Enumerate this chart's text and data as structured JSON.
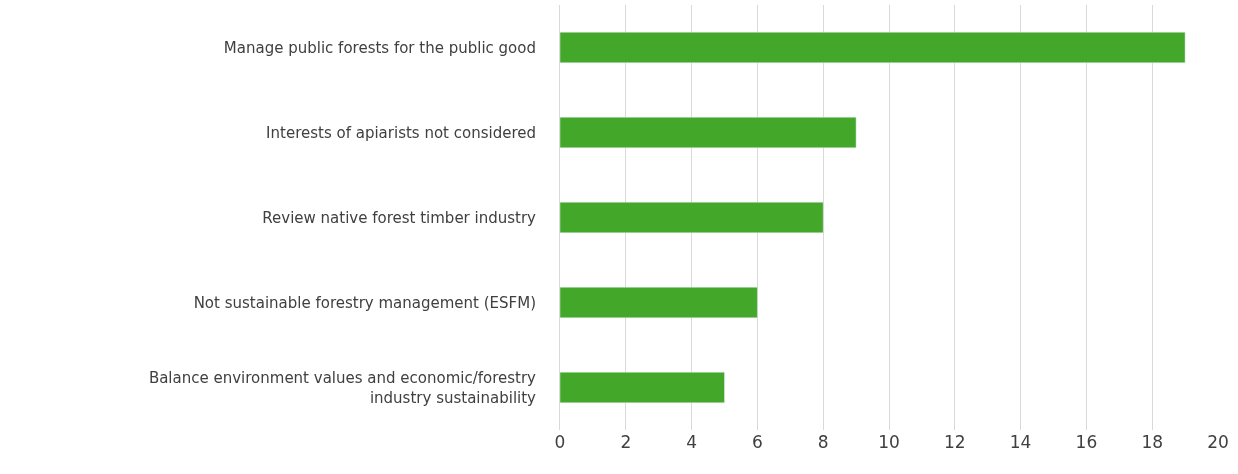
{
  "chart_data": {
    "type": "bar",
    "orientation": "horizontal",
    "categories": [
      "Manage public forests for the public good",
      "Interests of apiarists not considered",
      "Review native forest timber industry",
      "Not sustainable forestry management (ESFM)",
      "Balance environment values and economic/forestry industry sustainability"
    ],
    "values": [
      19,
      9,
      8,
      6,
      5
    ],
    "color": "#43a72a",
    "xlim": [
      0,
      20
    ],
    "xticks": [
      0,
      2,
      4,
      6,
      8,
      10,
      12,
      14,
      16,
      18,
      20
    ],
    "grid": "x"
  }
}
